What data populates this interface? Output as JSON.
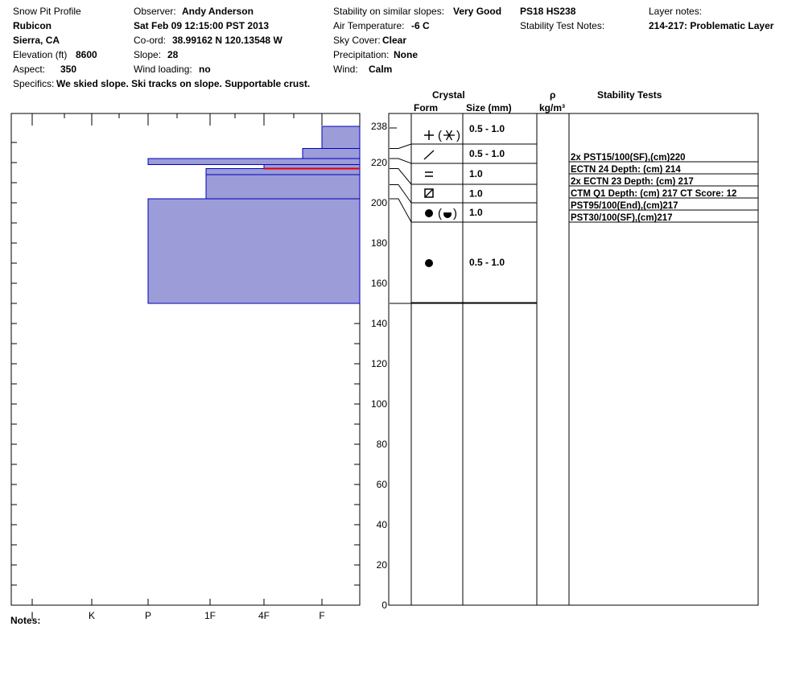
{
  "header": {
    "title": "Snow Pit Profile",
    "location": "Rubicon",
    "region": "Sierra, CA",
    "elevation_label": "Elevation (ft)",
    "elevation_value": "8600",
    "aspect_label": "Aspect:",
    "aspect_value": "350",
    "specifics_label": "Specifics:",
    "specifics_value": "We skied slope. Ski tracks on slope. Supportable crust.",
    "observer_label": "Observer:",
    "observer_value": "Andy Anderson",
    "datetime": "Sat Feb 09 12:15:00 PST 2013",
    "coord_label": "Co-ord:",
    "coord_value": "38.99162 N 120.13548 W",
    "slope_label": "Slope:",
    "slope_value": "28",
    "wind_loading_label": "Wind loading:",
    "wind_loading_value": "no",
    "stability_label": "Stability on similar slopes:",
    "stability_value": "Very Good",
    "air_temp_label": "Air Temperature:",
    "air_temp_value": "-6 C",
    "sky_label": "Sky Cover:",
    "sky_value": "Clear",
    "precip_label": "Precipitation:",
    "precip_value": "None",
    "wind_label": "Wind:",
    "wind_value": "Calm",
    "ps_value": "PS18 HS238",
    "stability_notes_label": "Stability Test Notes:",
    "layer_notes_label": "Layer notes:",
    "layer_notes_value": "214-217: Problematic Layer"
  },
  "columns": {
    "crystal": "Crystal",
    "form": "Form",
    "size": "Size (mm)",
    "rho": "ρ",
    "density_unit": "kg/m³",
    "stability_tests": "Stability Tests"
  },
  "notes_label": "Notes:",
  "colors": {
    "layer_fill": "#9c9cd8",
    "layer_stroke": "#0000c0",
    "problem_line": "#e00000"
  },
  "chart_data": {
    "type": "bar",
    "title": "Snow Pit Profile",
    "y_axis": {
      "min": 0,
      "max": 238,
      "ticks": [
        0,
        20,
        40,
        60,
        80,
        100,
        120,
        140,
        160,
        180,
        200,
        220
      ],
      "top_label": "238"
    },
    "hardness_scale": [
      "I",
      "K",
      "P",
      "1F",
      "4F",
      "F"
    ],
    "layers": [
      {
        "top": 238,
        "bottom": 227,
        "hardness": "F"
      },
      {
        "top": 227,
        "bottom": 222,
        "hardness": "F+"
      },
      {
        "top": 222,
        "bottom": 219,
        "hardness": "P"
      },
      {
        "top": 219,
        "bottom": 217,
        "hardness": "4F"
      },
      {
        "top": 217,
        "bottom": 214,
        "hardness": "P+"
      },
      {
        "top": 214,
        "bottom": 202,
        "hardness": "P+"
      },
      {
        "top": 202,
        "bottom": 150,
        "hardness": "P"
      }
    ],
    "problematic_layer": {
      "depth": 217
    },
    "crystals": [
      {
        "top": 238,
        "bottom": 227,
        "forms": [
          "precipitation-particles",
          "stellar-dendrite"
        ],
        "size": "0.5 - 1.0"
      },
      {
        "top": 227,
        "bottom": 222,
        "forms": [
          "decomposing-fragmented"
        ],
        "size": "0.5 - 1.0"
      },
      {
        "top": 222,
        "bottom": 217,
        "forms": [
          "rounded-grains-faceting"
        ],
        "size": "1.0"
      },
      {
        "top": 217,
        "bottom": 209,
        "forms": [
          "faceted-rounded"
        ],
        "size": "1.0"
      },
      {
        "top": 209,
        "bottom": 202,
        "forms": [
          "melt-forms",
          "melt-freeze-crust"
        ],
        "size": "1.0"
      },
      {
        "top": 202,
        "bottom": 150,
        "forms": [
          "melt-forms"
        ],
        "size": "0.5 - 1.0"
      }
    ],
    "stability_tests": [
      "2x PST15/100(SF),(cm)220",
      "ECTN 24   Depth: (cm) 214",
      "2x ECTN 23   Depth: (cm) 217",
      "CTM Q1 Depth: (cm) 217 CT Score: 12",
      "PST95/100(End),(cm)217",
      "PST30/100(SF),(cm)217"
    ]
  }
}
